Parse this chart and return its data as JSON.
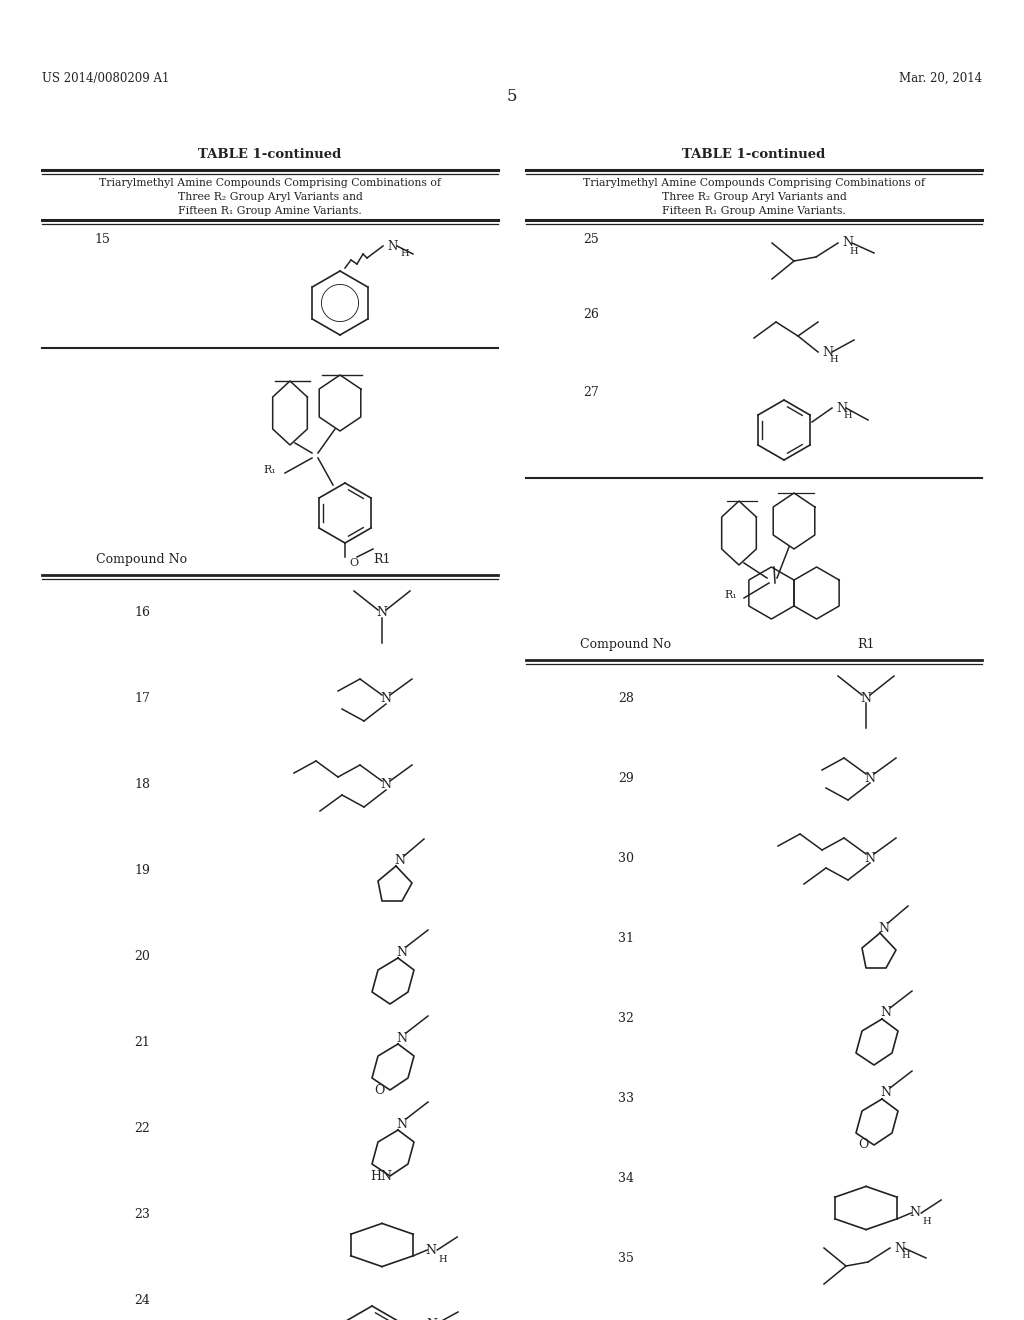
{
  "bg_color": "#ffffff",
  "header_left": "US 2014/0080209 A1",
  "header_right": "Mar. 20, 2014",
  "page_number": "5",
  "table_title": "TABLE 1-continued",
  "sub1": "Triarylmethyl Amine Compounds Comprising Combinations of",
  "sub2": "Three R₂ Group Aryl Variants and",
  "sub3": "Fifteen R₁ Group Amine Variants.",
  "col_header1": "Compound No",
  "col_header2": "R1",
  "text_color": "#222222",
  "line_color": "#222222"
}
